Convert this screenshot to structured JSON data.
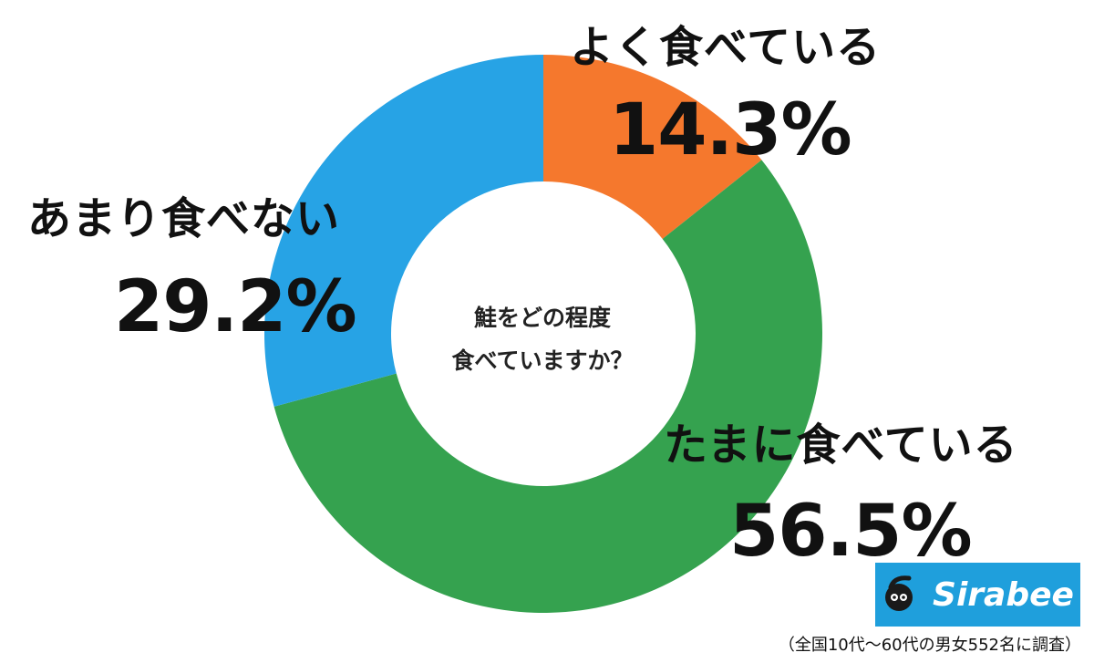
{
  "chart_data": {
    "type": "pie",
    "title": "",
    "center_text": [
      "鮭をどの程度",
      "食べていますか？"
    ],
    "slices": [
      {
        "label": "よく食べている",
        "value": 14.3,
        "value_label": "14.3%",
        "color": "#f5782d"
      },
      {
        "label": "たまに食べている",
        "value": 56.5,
        "value_label": "56.5%",
        "color": "#35a24f"
      },
      {
        "label": "あまり食べない",
        "value": 29.2,
        "value_label": "29.2%",
        "color": "#27a3e5"
      }
    ]
  },
  "brand": {
    "name": "Sirabee",
    "color": "#1f9fdc"
  },
  "footnote": "（全国10代〜60代の男女552名に調査）"
}
